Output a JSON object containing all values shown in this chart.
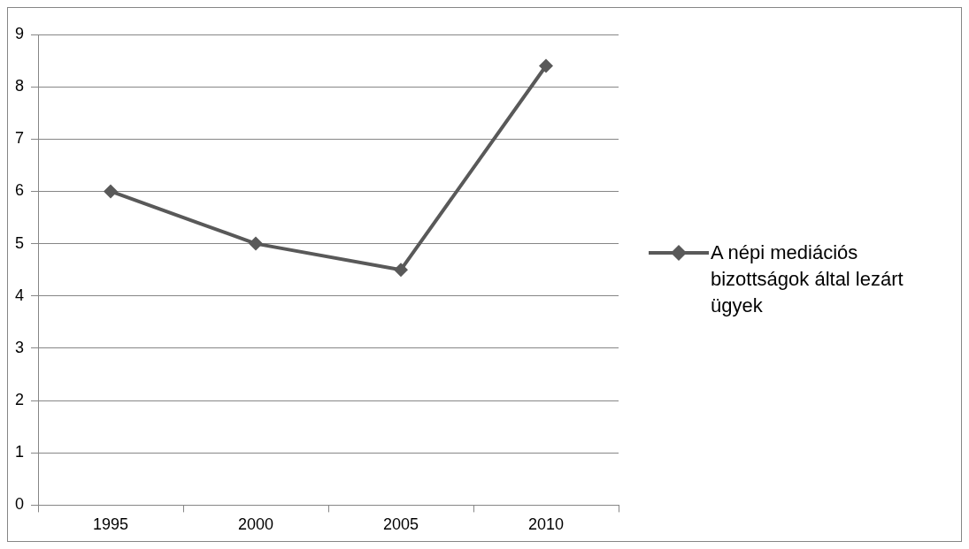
{
  "chart_data": {
    "type": "line",
    "categories": [
      "1995",
      "2000",
      "2005",
      "2010"
    ],
    "series": [
      {
        "name": "A népi mediációs bizottságok által lezárt ügyek",
        "color": "#595959",
        "values": [
          6.0,
          5.0,
          4.5,
          8.4
        ]
      }
    ],
    "ylim": [
      0,
      9
    ],
    "yticks": [
      0,
      1,
      2,
      3,
      4,
      5,
      6,
      7,
      8,
      9
    ],
    "grid": "y",
    "legend": "right",
    "marker": "diamond",
    "line_style": "solid"
  }
}
